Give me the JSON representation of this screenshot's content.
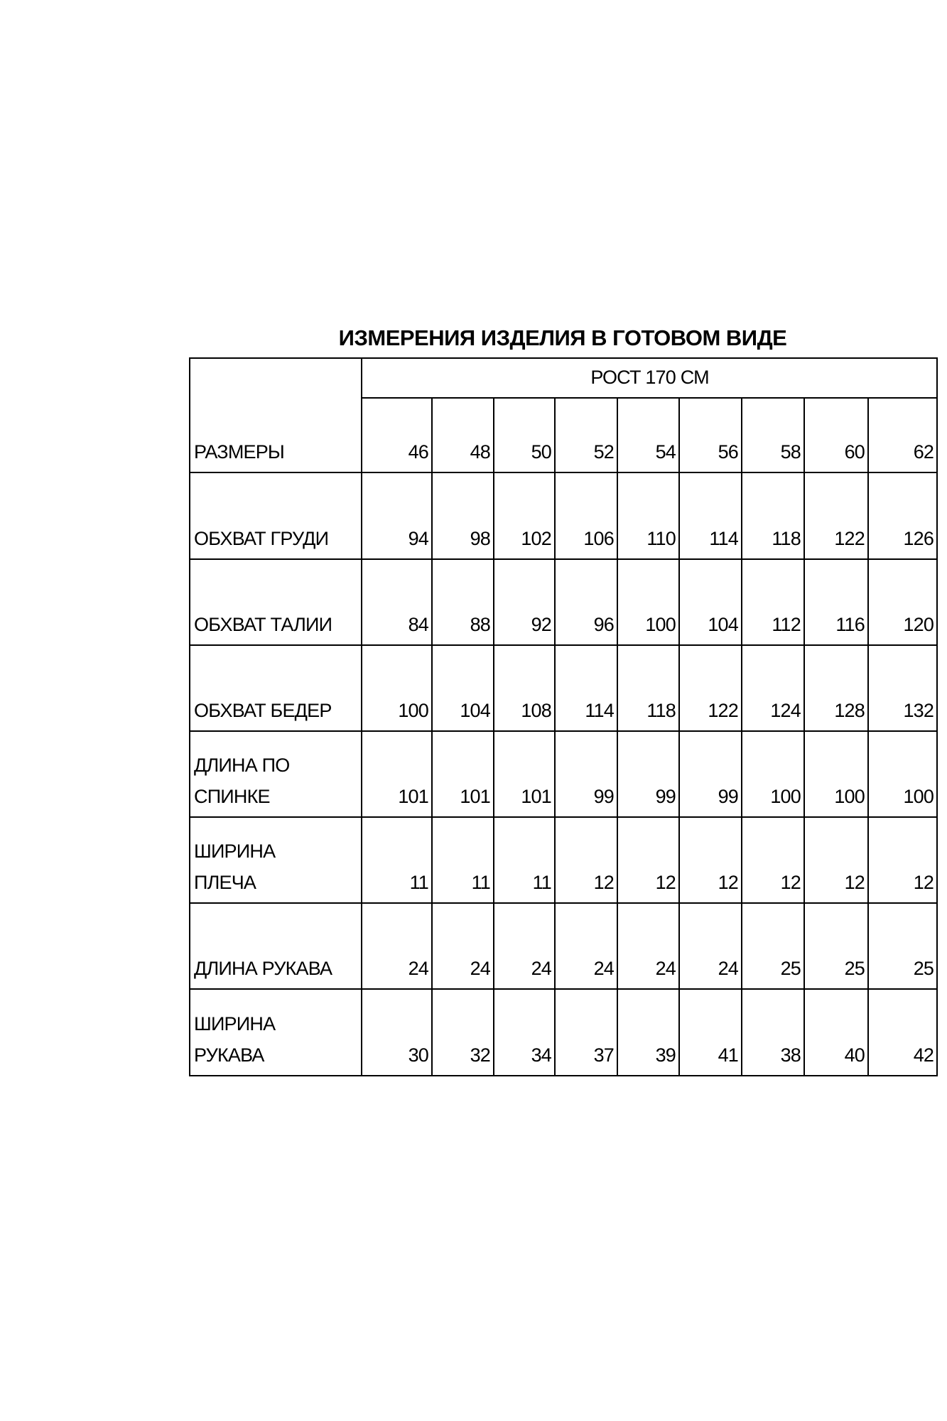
{
  "title": "ИЗМЕРЕНИЯ ИЗДЕЛИЯ В ГОТОВОМ ВИДЕ",
  "height_header": "РОСТ 170 СМ",
  "sizes_label": "РАЗМЕРЫ",
  "sizes": [
    "46",
    "48",
    "50",
    "52",
    "54",
    "56",
    "58",
    "60",
    "62"
  ],
  "rows": [
    {
      "label": "ОБХВАТ ГРУДИ",
      "values": [
        "94",
        "98",
        "102",
        "106",
        "110",
        "114",
        "118",
        "122",
        "126"
      ]
    },
    {
      "label": "ОБХВАТ ТАЛИИ",
      "values": [
        "84",
        "88",
        "92",
        "96",
        "100",
        "104",
        "112",
        "116",
        "120"
      ]
    },
    {
      "label": "ОБХВАТ БЕДЕР",
      "values": [
        "100",
        "104",
        "108",
        "114",
        "118",
        "122",
        "124",
        "128",
        "132"
      ]
    },
    {
      "label": "ДЛИНА ПО\nСПИНКЕ",
      "values": [
        "101",
        "101",
        "101",
        "99",
        "99",
        "99",
        "100",
        "100",
        "100"
      ]
    },
    {
      "label": "ШИРИНА\nПЛЕЧА",
      "values": [
        "11",
        "11",
        "11",
        "12",
        "12",
        "12",
        "12",
        "12",
        "12"
      ]
    },
    {
      "label": "ДЛИНА РУКАВА",
      "values": [
        "24",
        "24",
        "24",
        "24",
        "24",
        "24",
        "25",
        "25",
        "25"
      ]
    },
    {
      "label": "ШИРИНА\nРУКАВА",
      "values": [
        "30",
        "32",
        "34",
        "37",
        "39",
        "41",
        "38",
        "40",
        "42"
      ]
    }
  ]
}
